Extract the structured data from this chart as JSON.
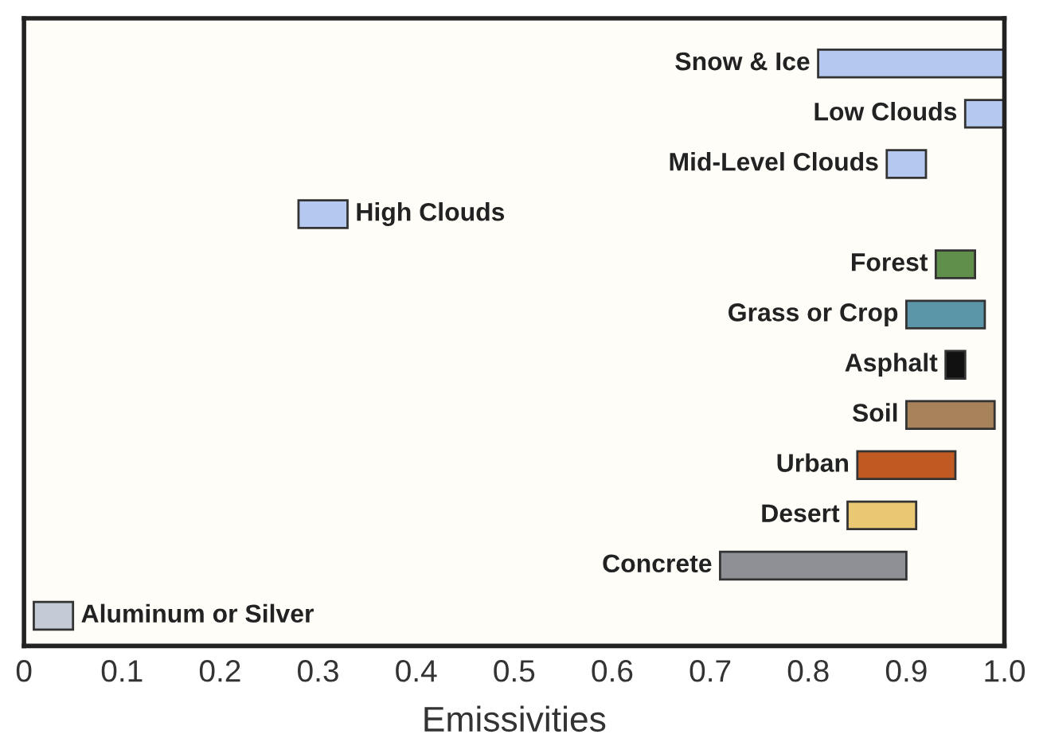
{
  "chart_data": {
    "type": "bar",
    "orientation": "horizontal",
    "xlabel": "Emissivities",
    "categories": [
      "Snow & Ice",
      "Low Clouds",
      "Mid-Level Clouds",
      "High Clouds",
      "Forest",
      "Grass or Crop",
      "Asphalt",
      "Soil",
      "Urban",
      "Desert",
      "Concrete",
      "Aluminum or Silver"
    ],
    "base": [
      0.81,
      0.96,
      0.88,
      0.28,
      0.93,
      0.9,
      0.94,
      0.9,
      0.85,
      0.84,
      0.71,
      0.01
    ],
    "values": [
      0.19,
      0.04,
      0.04,
      0.05,
      0.04,
      0.08,
      0.02,
      0.09,
      0.1,
      0.07,
      0.19,
      0.04
    ],
    "colors": [
      "#b4c8f0",
      "#b4c8f0",
      "#b4c8f0",
      "#b4c8f0",
      "#5f8f4a",
      "#5a96a8",
      "#111111",
      "#a8825a",
      "#c05a22",
      "#eac772",
      "#8e9096",
      "#c4cad6"
    ],
    "xlim": [
      0,
      1.0
    ],
    "xticks": [
      0,
      0.1,
      0.2,
      0.3,
      0.4,
      0.5,
      0.6,
      0.7,
      0.8,
      0.9,
      {
        "value": 1,
        "label": "1.0"
      }
    ],
    "tick_labels": "x",
    "grid": false
  }
}
